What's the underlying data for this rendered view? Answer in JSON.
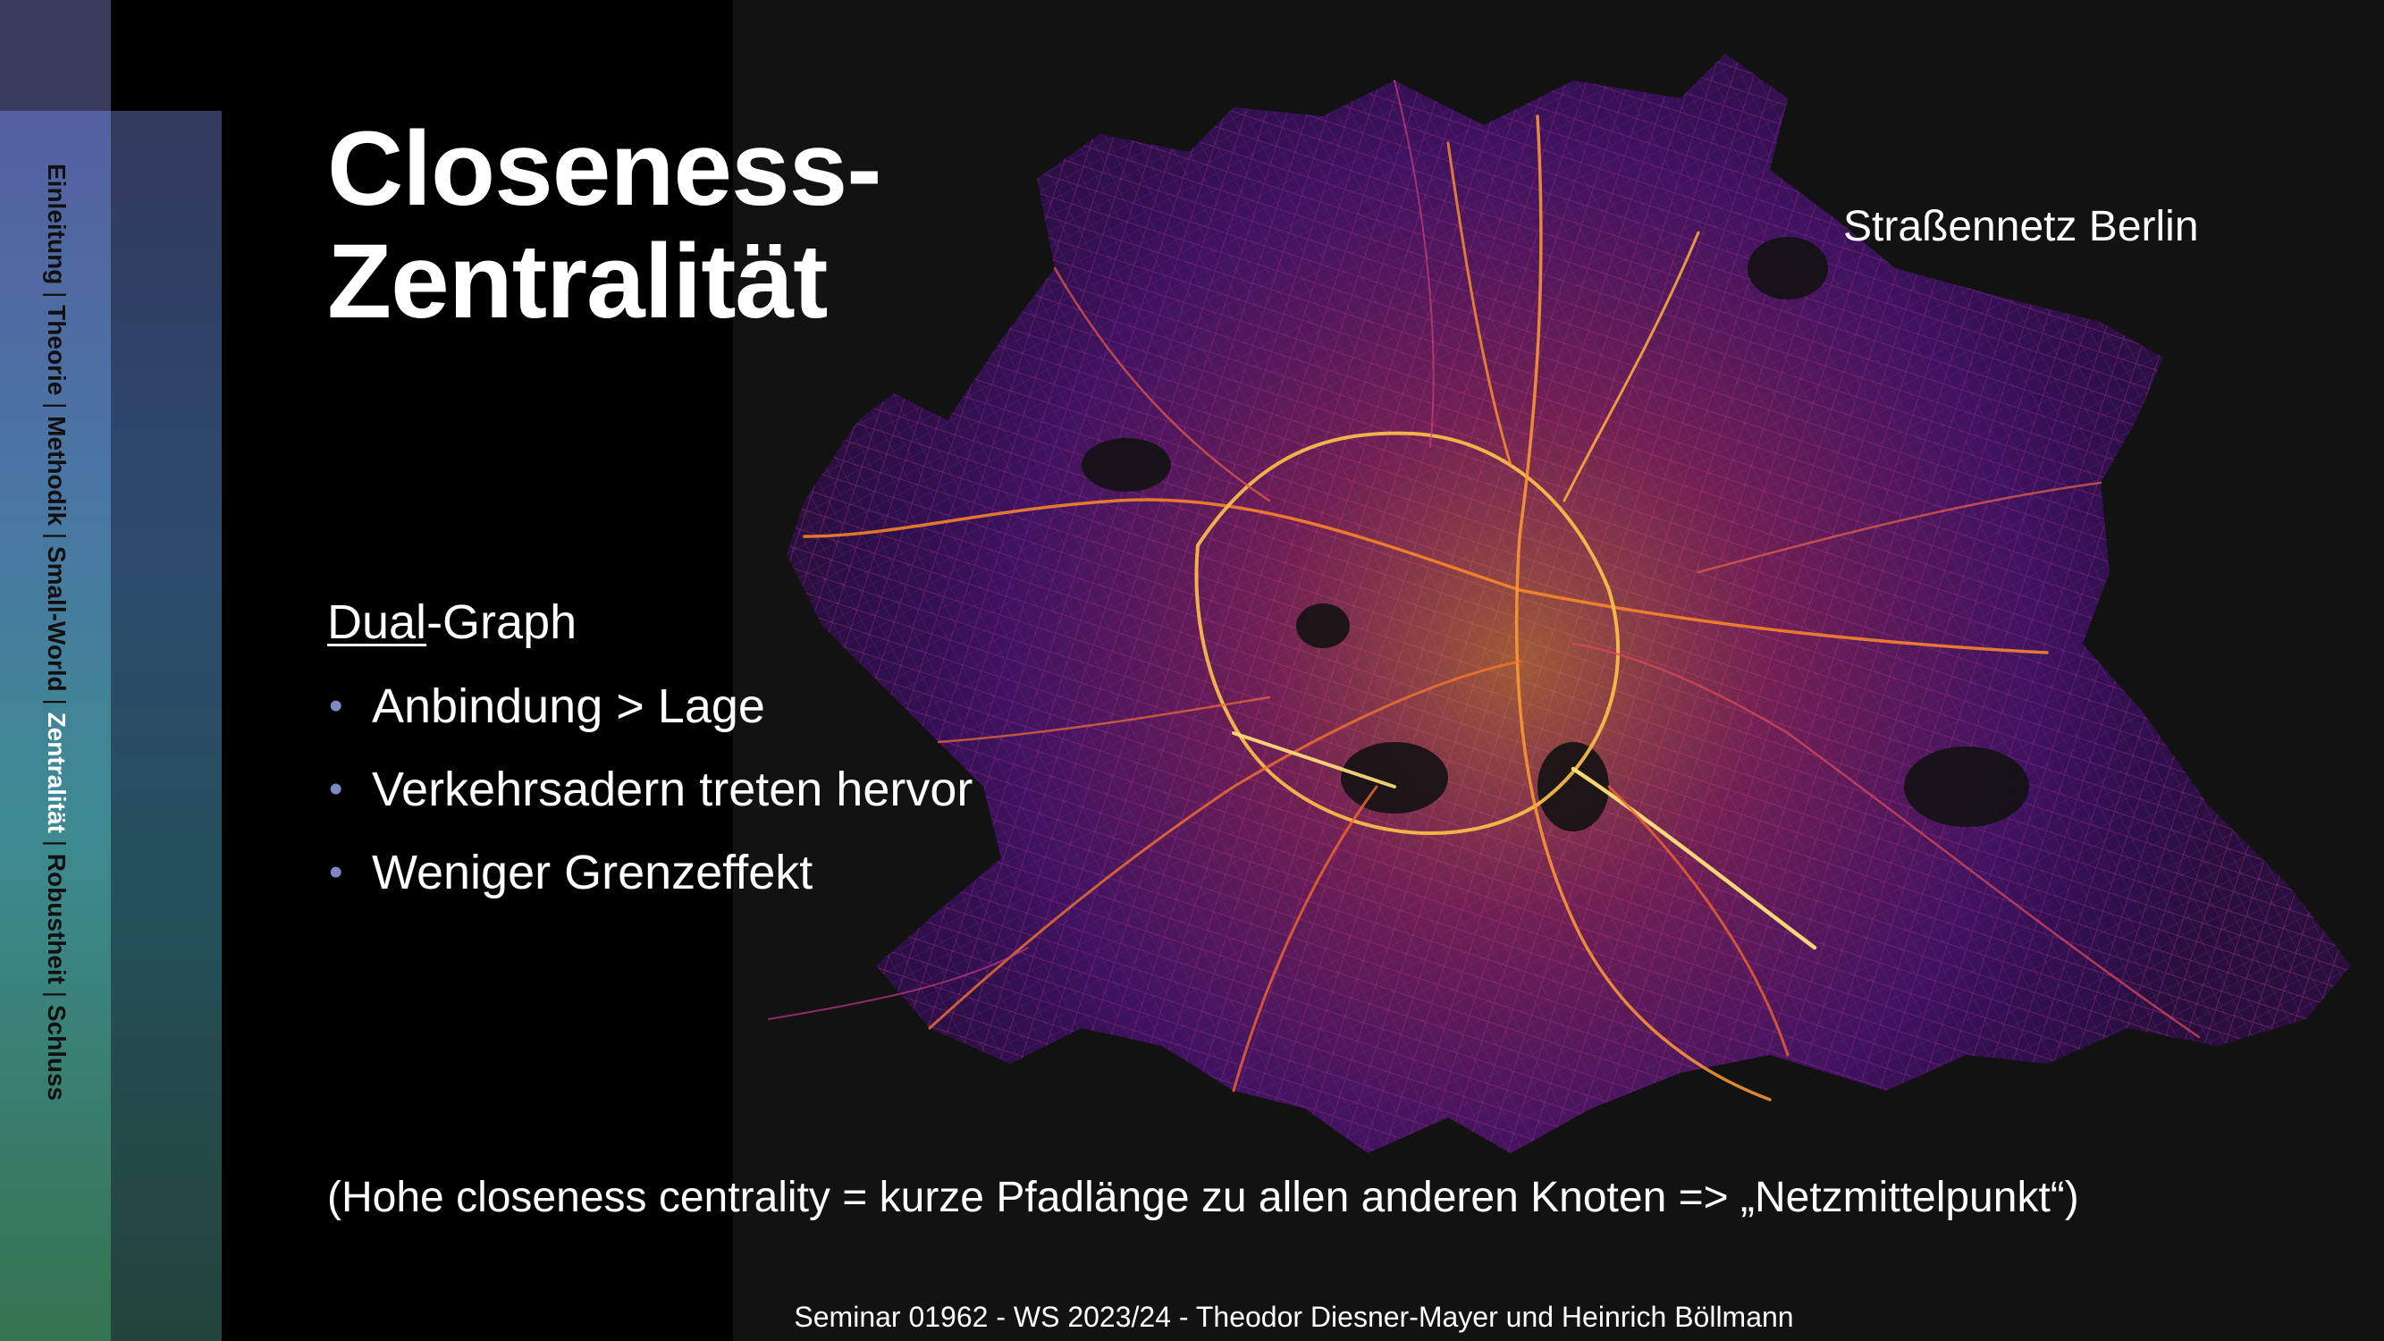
{
  "nav": {
    "items": [
      {
        "label": "Einleitung",
        "active": false
      },
      {
        "label": "Theorie",
        "active": false
      },
      {
        "label": "Methodik",
        "active": false
      },
      {
        "label": "Small-World",
        "active": false
      },
      {
        "label": "Zentralität",
        "active": true
      },
      {
        "label": "Robustheit",
        "active": false
      },
      {
        "label": "Schluss",
        "active": false
      }
    ],
    "separator": "|"
  },
  "title": {
    "line1": "Closeness-",
    "line2": "Zentralität"
  },
  "map_caption": "Straßennetz Berlin",
  "content": {
    "heading_underlined": "Dual",
    "heading_rest": "-Graph",
    "bullets": [
      "Anbindung > Lage",
      "Verkehrsadern treten hervor",
      "Weniger Grenzeffekt"
    ]
  },
  "note": "(Hohe closeness centrality = kurze Pfadlänge zu allen anderen Knoten => „Netzmittelpunkt“)",
  "footer": "Seminar 01962 - WS 2023/24 - Theodor Diesner-Mayer und Heinrich Böllmann",
  "colors": {
    "background": "#000000",
    "map_panel": "#121212",
    "centrality_low": "#3a0b86",
    "centrality_mid": "#c23a85",
    "centrality_high": "#fde86a",
    "bullet": "#7f87c4"
  }
}
